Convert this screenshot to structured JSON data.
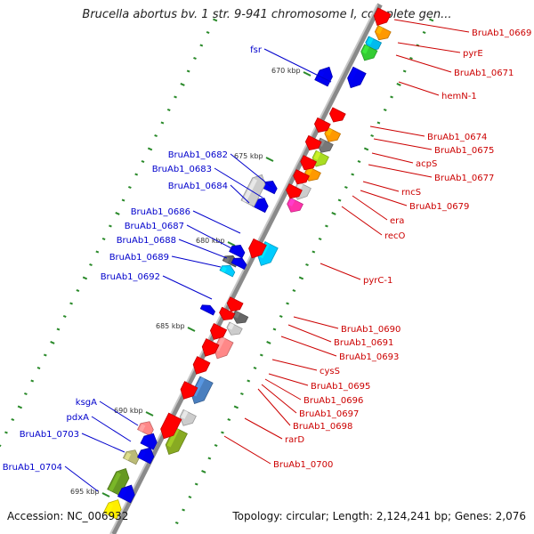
{
  "title": "Brucella abortus bv. 1 str. 9-941 chromosome I, complete gen...",
  "accession": "Accession: NC_006932",
  "topology": "Topology: circular; Length: 2,124,241 bp; Genes: 2,076",
  "colors": {
    "backbone": "#888888",
    "plus_label": "#0000cc",
    "minus_label": "#cc0000",
    "tick": "#2a8a2a"
  },
  "scale_labels": [
    "670 kbp",
    "675 kbp",
    "680 kbp",
    "685 kbp",
    "690 kbp",
    "695 kbp"
  ],
  "genes_plus": [
    "fsr",
    "BruAb1_0682",
    "BruAb1_0683",
    "BruAb1_0684",
    "BruAb1_0686",
    "BruAb1_0687",
    "BruAb1_0688",
    "BruAb1_0689",
    "BruAb1_0692",
    "ksgA",
    "pdxA",
    "BruAb1_0703",
    "BruAb1_0704"
  ],
  "genes_minus": [
    "BruAb1_0669",
    "pyrE",
    "BruAb1_0671",
    "hemN-1",
    "BruAb1_0674",
    "BruAb1_0675",
    "acpS",
    "BruAb1_0677",
    "rncS",
    "BruAb1_0679",
    "era",
    "recO",
    "pyrC-1",
    "BruAb1_0690",
    "BruAb1_0691",
    "BruAb1_0693",
    "cysS",
    "BruAb1_0695",
    "BruAb1_0696",
    "BruAb1_0697",
    "BruAb1_0698",
    "rarD",
    "BruAb1_0700"
  ]
}
